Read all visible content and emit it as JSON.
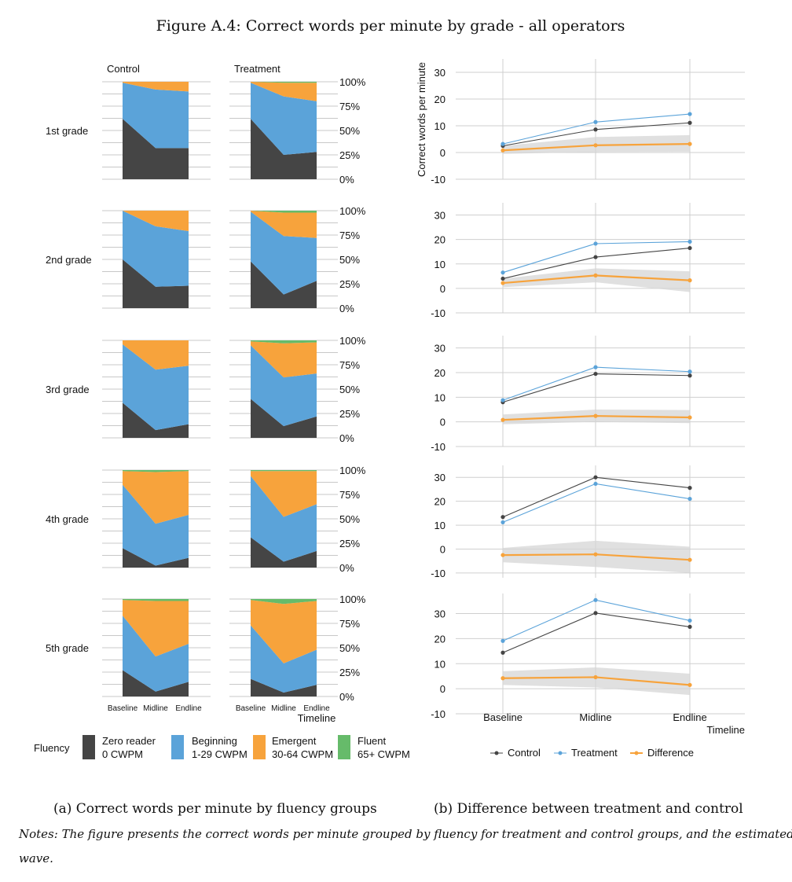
{
  "figure": {
    "title": "Figure A.4: Correct words per minute by grade - all operators",
    "caption_a": "(a)  Correct words per minute by fluency groups",
    "caption_b": "(b)  Difference between treatment and control",
    "notes_line1": "Notes: The figure presents the correct words per minute grouped by fluency for treatment and control groups, and the estimated difference in each",
    "notes_line2": "wave."
  },
  "chart_data": [
    {
      "type": "area",
      "subtype": "stacked-100",
      "panel": "a",
      "waves": [
        "Baseline",
        "Midline",
        "Endline"
      ],
      "group_labels": [
        "Control",
        "Treatment"
      ],
      "grades": [
        "1st grade",
        "2nd grade",
        "3rd grade",
        "4th grade",
        "5th grade"
      ],
      "y_ticks": [
        "100%",
        "75%",
        "50%",
        "25%",
        "0%"
      ],
      "xlabel": "Timeline",
      "legend_title": "Fluency",
      "categories": [
        {
          "name": "Zero reader",
          "sub": "0 CWPM",
          "color": "#454545"
        },
        {
          "name": "Beginning",
          "sub": "1-29 CWPM",
          "color": "#5ba3d9"
        },
        {
          "name": "Emergent",
          "sub": "30-64 CWPM",
          "color": "#f7a33c"
        },
        {
          "name": "Fluent",
          "sub": "65+ CWPM",
          "color": "#66bb6a"
        }
      ],
      "data": {
        "Control": [
          [
            [
              0.62,
              0.37,
              0.01,
              0.0
            ],
            [
              0.32,
              0.6,
              0.08,
              0.0
            ],
            [
              0.32,
              0.58,
              0.1,
              0.0
            ]
          ],
          [
            [
              0.5,
              0.5,
              0.0,
              0.0
            ],
            [
              0.22,
              0.62,
              0.16,
              0.0
            ],
            [
              0.23,
              0.56,
              0.21,
              0.0
            ]
          ],
          [
            [
              0.36,
              0.6,
              0.04,
              0.0
            ],
            [
              0.08,
              0.62,
              0.3,
              0.0
            ],
            [
              0.14,
              0.6,
              0.26,
              0.0
            ]
          ],
          [
            [
              0.2,
              0.65,
              0.14,
              0.01
            ],
            [
              0.02,
              0.43,
              0.53,
              0.02
            ],
            [
              0.1,
              0.44,
              0.45,
              0.01
            ]
          ],
          [
            [
              0.27,
              0.56,
              0.16,
              0.01
            ],
            [
              0.05,
              0.36,
              0.57,
              0.02
            ],
            [
              0.15,
              0.39,
              0.44,
              0.02
            ]
          ]
        ],
        "Treatment": [
          [
            [
              0.62,
              0.37,
              0.01,
              0.0
            ],
            [
              0.25,
              0.6,
              0.14,
              0.01
            ],
            [
              0.28,
              0.52,
              0.19,
              0.01
            ]
          ],
          [
            [
              0.48,
              0.51,
              0.01,
              0.0
            ],
            [
              0.14,
              0.6,
              0.24,
              0.02
            ],
            [
              0.28,
              0.44,
              0.26,
              0.02
            ]
          ],
          [
            [
              0.4,
              0.55,
              0.04,
              0.01
            ],
            [
              0.12,
              0.5,
              0.35,
              0.03
            ],
            [
              0.22,
              0.44,
              0.32,
              0.02
            ]
          ],
          [
            [
              0.31,
              0.63,
              0.05,
              0.01
            ],
            [
              0.06,
              0.46,
              0.47,
              0.01
            ],
            [
              0.17,
              0.48,
              0.34,
              0.01
            ]
          ],
          [
            [
              0.18,
              0.55,
              0.26,
              0.01
            ],
            [
              0.04,
              0.3,
              0.61,
              0.05
            ],
            [
              0.12,
              0.36,
              0.5,
              0.02
            ]
          ]
        ]
      }
    },
    {
      "type": "line",
      "panel": "b",
      "x": [
        "Baseline",
        "Midline",
        "Endline"
      ],
      "ylabel": "Correct words per minute",
      "xlabel": "Timeline",
      "grid": true,
      "series_meta": [
        {
          "name": "Control",
          "color": "#454545"
        },
        {
          "name": "Treatment",
          "color": "#5ba3d9"
        },
        {
          "name": "Difference",
          "color": "#f7a33c"
        }
      ],
      "grades": [
        {
          "grade": "1st grade",
          "ylim": [
            -10,
            35
          ],
          "yticks": [
            30,
            20,
            10,
            0,
            -10
          ],
          "control": [
            2.5,
            8.6,
            11.1
          ],
          "treatment": [
            3.2,
            11.4,
            14.4
          ],
          "difference": [
            0.8,
            2.7,
            3.2
          ],
          "ci_low": [
            -0.5,
            0.2,
            0.3
          ],
          "ci_high": [
            2.5,
            5.8,
            6.5
          ]
        },
        {
          "grade": "2nd grade",
          "ylim": [
            -10,
            35
          ],
          "yticks": [
            30,
            20,
            10,
            0,
            -10
          ],
          "control": [
            4.0,
            12.8,
            16.5
          ],
          "treatment": [
            6.5,
            18.3,
            19.1
          ],
          "difference": [
            2.2,
            5.3,
            3.3
          ],
          "ci_low": [
            0.5,
            2.5,
            -1.5
          ],
          "ci_high": [
            4.0,
            8.2,
            7.0
          ]
        },
        {
          "grade": "3rd grade",
          "ylim": [
            -10,
            35
          ],
          "yticks": [
            30,
            20,
            10,
            0,
            -10
          ],
          "control": [
            8.0,
            19.5,
            18.8
          ],
          "treatment": [
            8.8,
            22.2,
            20.4
          ],
          "difference": [
            0.8,
            2.4,
            1.8
          ],
          "ci_low": [
            -1.0,
            0.0,
            -0.5
          ],
          "ci_high": [
            3.0,
            5.0,
            4.8
          ]
        },
        {
          "grade": "4th grade",
          "ylim": [
            -12,
            35
          ],
          "yticks": [
            30,
            20,
            10,
            0,
            -10
          ],
          "control": [
            13.4,
            30.0,
            25.6
          ],
          "treatment": [
            11.2,
            27.3,
            21.0
          ],
          "difference": [
            -2.5,
            -2.2,
            -4.5
          ],
          "ci_low": [
            -5.5,
            -7.5,
            -10.0
          ],
          "ci_high": [
            0.5,
            3.5,
            1.0
          ]
        },
        {
          "grade": "5th grade",
          "ylim": [
            -10,
            38
          ],
          "yticks": [
            30,
            20,
            10,
            0,
            -10
          ],
          "control": [
            14.4,
            30.2,
            24.7
          ],
          "treatment": [
            19.1,
            35.4,
            27.2
          ],
          "difference": [
            4.2,
            4.6,
            1.5
          ],
          "ci_low": [
            1.5,
            0.5,
            -2.5
          ],
          "ci_high": [
            7.0,
            8.5,
            6.0
          ]
        }
      ]
    }
  ]
}
